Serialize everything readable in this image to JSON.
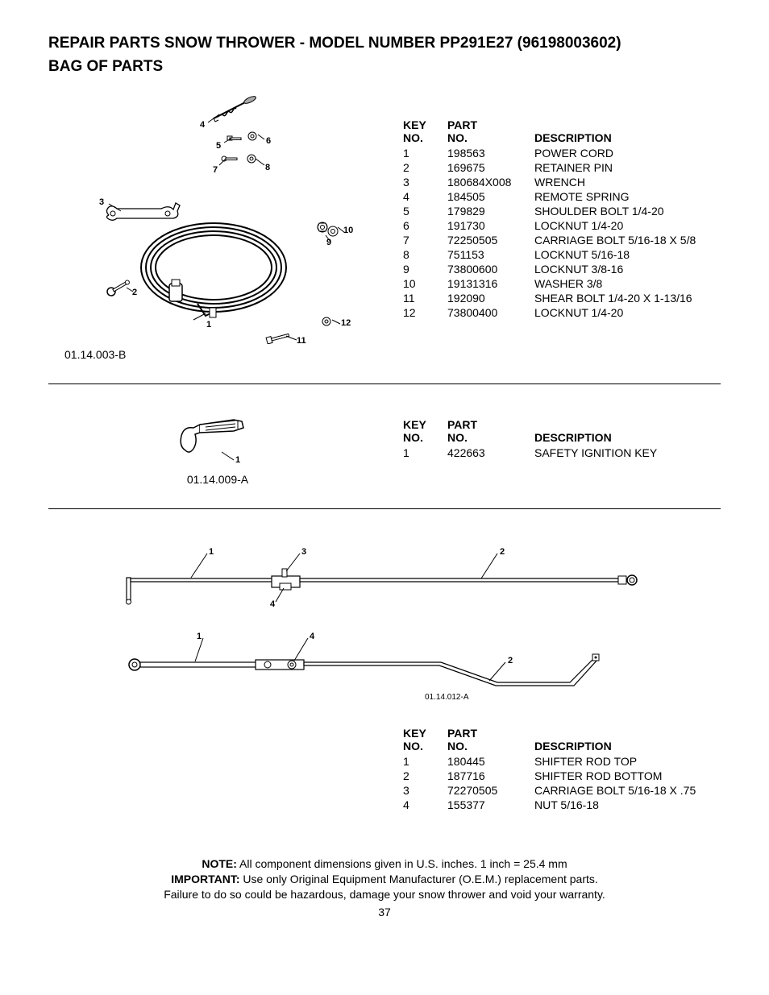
{
  "title_line1": "REPAIR PARTS  SNOW THROWER - MODEL NUMBER  PP291E27 (96198003602)",
  "title_line2": "BAG OF PARTS",
  "headers": {
    "key1": "KEY",
    "key2": "NO.",
    "part1": "PART",
    "part2": "NO.",
    "desc": "DESCRIPTION"
  },
  "section1": {
    "diagram_id": "01.14.003-B",
    "rows": [
      {
        "key": "1",
        "part": "198563",
        "desc": "POWER CORD"
      },
      {
        "key": "2",
        "part": "169675",
        "desc": "RETAINER PIN"
      },
      {
        "key": "3",
        "part": "180684X008",
        "desc": "WRENCH"
      },
      {
        "key": "4",
        "part": "184505",
        "desc": "REMOTE SPRING"
      },
      {
        "key": "5",
        "part": "179829",
        "desc": "SHOULDER BOLT 1/4-20"
      },
      {
        "key": "6",
        "part": "191730",
        "desc": "LOCKNUT 1/4-20"
      },
      {
        "key": "7",
        "part": "72250505",
        "desc": "CARRIAGE BOLT 5/16-18 X 5/8"
      },
      {
        "key": "8",
        "part": "751153",
        "desc": "LOCKNUT 5/16-18"
      },
      {
        "key": "9",
        "part": "73800600",
        "desc": "LOCKNUT 3/8-16"
      },
      {
        "key": "10",
        "part": "19131316",
        "desc": "WASHER 3/8"
      },
      {
        "key": "11",
        "part": "192090",
        "desc": "SHEAR BOLT 1/4-20 X 1-13/16"
      },
      {
        "key": "12",
        "part": "73800400",
        "desc": "LOCKNUT 1/4-20"
      }
    ],
    "callouts": [
      "1",
      "2",
      "3",
      "4",
      "5",
      "6",
      "7",
      "8",
      "9",
      "10",
      "11",
      "12"
    ]
  },
  "section2": {
    "diagram_id": "01.14.009-A",
    "rows": [
      {
        "key": "1",
        "part": "422663",
        "desc": "SAFETY IGNITION KEY"
      }
    ],
    "callouts": [
      "1"
    ]
  },
  "section3": {
    "diagram_id": "01.14.012-A",
    "rows": [
      {
        "key": "1",
        "part": "180445",
        "desc": "SHIFTER ROD TOP"
      },
      {
        "key": "2",
        "part": "187716",
        "desc": "SHIFTER ROD BOTTOM"
      },
      {
        "key": "3",
        "part": "72270505",
        "desc": "CARRIAGE BOLT 5/16-18 X .75"
      },
      {
        "key": "4",
        "part": "155377",
        "desc": "NUT 5/16-18"
      }
    ],
    "callouts_top": [
      "1",
      "2",
      "3",
      "4"
    ],
    "callouts_bot": [
      "1",
      "2",
      "4"
    ]
  },
  "footer": {
    "note_label": "NOTE:",
    "note_text": "  All component dimensions given in U.S. inches.    1 inch = 25.4 mm",
    "important_label": "IMPORTANT:",
    "important_text": " Use only Original Equipment Manufacturer (O.E.M.) replacement parts.",
    "warning": "Failure to do so could be hazardous, damage your snow thrower and void your warranty."
  },
  "page_number": "37"
}
